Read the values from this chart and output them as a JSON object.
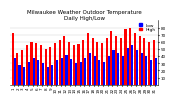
{
  "title": "Milwaukee Weather Outdoor Temperature\nDaily High/Low",
  "highs": [
    72,
    45,
    48,
    55,
    60,
    58,
    55,
    50,
    53,
    58,
    62,
    68,
    60,
    55,
    57,
    63,
    72,
    65,
    60,
    58,
    65,
    75,
    68,
    65,
    78,
    80,
    72,
    68,
    65,
    60,
    62
  ],
  "lows": [
    38,
    28,
    25,
    32,
    38,
    35,
    30,
    25,
    28,
    35,
    38,
    42,
    36,
    30,
    32,
    38,
    45,
    40,
    35,
    32,
    40,
    48,
    44,
    40,
    52,
    55,
    48,
    44,
    40,
    35,
    38
  ],
  "high_color": "#ff0000",
  "low_color": "#0000ff",
  "bg_color": "#ffffff",
  "ylim": [
    0,
    90
  ],
  "yticks": [
    10,
    20,
    30,
    40,
    50,
    60,
    70,
    80
  ],
  "bar_width": 0.45,
  "title_fontsize": 4.0,
  "tick_fontsize": 3.0,
  "legend_fontsize": 3.2,
  "ylabel_color": "#444444"
}
